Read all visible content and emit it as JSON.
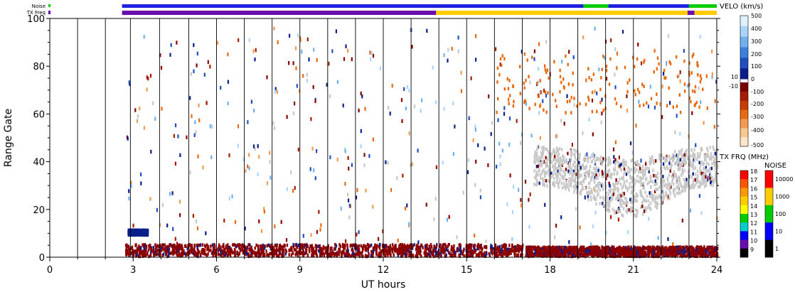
{
  "chart_data": {
    "type": "heatmap",
    "xlabel": "UT hours",
    "ylabel": "Range Gate",
    "xlim": [
      0,
      24
    ],
    "ylim": [
      0,
      100
    ],
    "x_tick_labels": [
      "0",
      "3",
      "6",
      "9",
      "12",
      "15",
      "18",
      "21",
      "24"
    ],
    "y_tick_labels": [
      "0",
      "20",
      "40",
      "60",
      "80",
      "100"
    ],
    "scan_boundaries": [
      0,
      1,
      2,
      2.9,
      3.95,
      5,
      6,
      7,
      8,
      9,
      10,
      11,
      12,
      13,
      14,
      15,
      16,
      17,
      18,
      19,
      20,
      21,
      22,
      23,
      24
    ],
    "status_bars": {
      "noise_label": "Noise",
      "txfreq_label": "TX Freq",
      "noise_segments": [
        {
          "start": 2.6,
          "end": 19.2,
          "color": "#2020e0"
        },
        {
          "start": 19.2,
          "end": 20.1,
          "color": "#00cc00"
        },
        {
          "start": 20.1,
          "end": 23.0,
          "color": "#2020e0"
        },
        {
          "start": 23.0,
          "end": 24.0,
          "color": "#00cc00"
        }
      ],
      "txfreq_segments": [
        {
          "start": 2.6,
          "end": 13.9,
          "color": "#6a0dad"
        },
        {
          "start": 13.9,
          "end": 22.95,
          "color": "#ffcc00"
        },
        {
          "start": 22.95,
          "end": 23.2,
          "color": "#6a0dad"
        },
        {
          "start": 23.2,
          "end": 24.0,
          "color": "#ffcc00"
        }
      ]
    },
    "velocity_colorbar": {
      "title": "VELO (km/s)",
      "labels": [
        "500",
        "400",
        "300",
        "200",
        "100",
        "10",
        "0",
        "-10",
        "-100",
        "-200",
        "-300",
        "-400",
        "-500"
      ],
      "positive_colors": [
        "#dff0ff",
        "#a8d4ff",
        "#6fb0ef",
        "#3c7fdc",
        "#1f4fc0",
        "#0a1f8a"
      ],
      "negative_colors": [
        "#7a0000",
        "#a51c00",
        "#c83c00",
        "#e86a10",
        "#f49a50",
        "#f8c890",
        "#fde6c8"
      ]
    },
    "txfreq_colorbar": {
      "title": "TX FRQ (MHz)",
      "labels": [
        "18",
        "17",
        "16",
        "15",
        "14",
        "13",
        "12",
        "11",
        "10",
        "9"
      ],
      "colors": [
        "#ff0000",
        "#ff5500",
        "#ff9900",
        "#ffcc00",
        "#ffff00",
        "#00cc00",
        "#00cccc",
        "#0000ff",
        "#6a0dad",
        "#000000"
      ]
    },
    "noise_colorbar": {
      "title": "NOISE",
      "labels": [
        "10000",
        "1000",
        "100",
        "10",
        "1"
      ],
      "colors": [
        "#ff0000",
        "#ffcc00",
        "#00cc00",
        "#0000ff",
        "#000000"
      ]
    },
    "scatter_regions": [
      {
        "name": "near-range negative velocity band",
        "x": [
          2.7,
          17.0
        ],
        "gates": [
          0,
          5
        ],
        "color": "#8b0000"
      },
      {
        "name": "near-range negative velocity band",
        "x": [
          17.1,
          24.0
        ],
        "gates": [
          0,
          4
        ],
        "color": "#8b0000"
      },
      {
        "name": "positive velocity patch",
        "x": [
          2.8,
          3.5
        ],
        "gates": [
          9,
          11
        ],
        "color": "#0a1f8a"
      },
      {
        "name": "ground scatter band",
        "x": [
          17.4,
          24.0
        ],
        "gates": [
          26,
          48
        ],
        "color": "#c8c8c8"
      },
      {
        "name": "far-range patches",
        "x": [
          16.0,
          23.5
        ],
        "gates": [
          60,
          85
        ],
        "color": "#e86a10"
      }
    ]
  }
}
